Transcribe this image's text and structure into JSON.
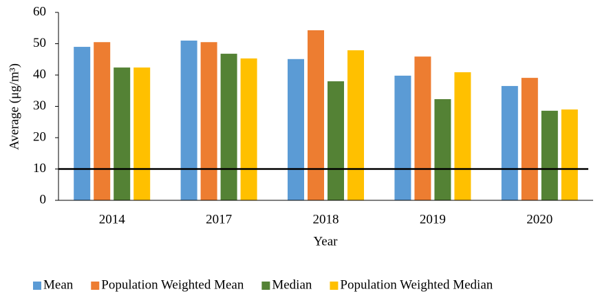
{
  "chart_data": {
    "type": "bar",
    "y_label": "Average (μg/m³)",
    "x_label": "Year",
    "categories": [
      "2014",
      "2017",
      "2018",
      "2019",
      "2020"
    ],
    "series": [
      {
        "name": "Mean",
        "color": "#5b9bd5",
        "values": [
          49.0,
          51.0,
          45.1,
          39.8,
          36.5
        ]
      },
      {
        "name": "Population Weighted Mean",
        "color": "#ed7d31",
        "values": [
          50.5,
          50.5,
          54.3,
          45.9,
          39.1
        ]
      },
      {
        "name": "Median",
        "color": "#548235",
        "values": [
          42.4,
          46.8,
          38.0,
          32.3,
          28.6
        ]
      },
      {
        "name": "Population Weighted Median",
        "color": "#ffc000",
        "values": [
          42.4,
          45.3,
          47.9,
          40.9,
          29.0
        ]
      }
    ],
    "reference_line": 10,
    "ylim": [
      0,
      60
    ],
    "yticks": [
      0,
      10,
      20,
      30,
      40,
      50,
      60
    ],
    "legend": "bottom"
  }
}
